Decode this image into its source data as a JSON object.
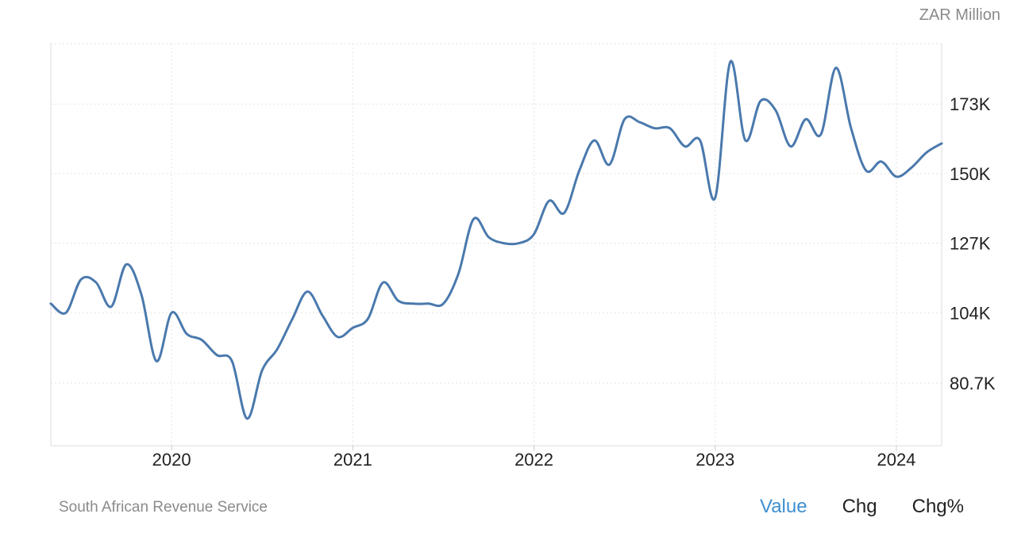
{
  "unit_label": "ZAR Million",
  "source": "South African Revenue Service",
  "tabs": [
    {
      "label": "Value",
      "active": true
    },
    {
      "label": "Chg",
      "active": false
    },
    {
      "label": "Chg%",
      "active": false
    }
  ],
  "colors": {
    "line": "#4a79ad",
    "grid": "#e3e3e3",
    "active_tab": "#3f8fd1"
  },
  "chart_data": {
    "type": "line",
    "title": "",
    "xlabel": "",
    "ylabel": "ZAR Million",
    "x_ticks": [
      "2020",
      "2021",
      "2022",
      "2023",
      "2024"
    ],
    "y_ticks": [
      {
        "label": "80.7K",
        "value": 80700
      },
      {
        "label": "104K",
        "value": 104000
      },
      {
        "label": "127K",
        "value": 127000
      },
      {
        "label": "150K",
        "value": 150000
      },
      {
        "label": "173K",
        "value": 173000
      }
    ],
    "ylim": [
      60000,
      193000
    ],
    "xlim": [
      "2019-05",
      "2024-04"
    ],
    "grid": true,
    "series": [
      {
        "values": [
          [
            "2019-05",
            107000
          ],
          [
            "2019-06",
            104000
          ],
          [
            "2019-07",
            115000
          ],
          [
            "2019-08",
            114000
          ],
          [
            "2019-09",
            106000
          ],
          [
            "2019-10",
            120000
          ],
          [
            "2019-11",
            110000
          ],
          [
            "2019-12",
            88000
          ],
          [
            "2020-01",
            104000
          ],
          [
            "2020-02",
            97000
          ],
          [
            "2020-03",
            95000
          ],
          [
            "2020-04",
            90000
          ],
          [
            "2020-05",
            88000
          ],
          [
            "2020-06",
            69000
          ],
          [
            "2020-07",
            85000
          ],
          [
            "2020-08",
            92000
          ],
          [
            "2020-09",
            102000
          ],
          [
            "2020-10",
            111000
          ],
          [
            "2020-11",
            103000
          ],
          [
            "2020-12",
            96000
          ],
          [
            "2021-01",
            99000
          ],
          [
            "2021-02",
            102000
          ],
          [
            "2021-03",
            114000
          ],
          [
            "2021-04",
            108000
          ],
          [
            "2021-05",
            107000
          ],
          [
            "2021-06",
            107000
          ],
          [
            "2021-07",
            107000
          ],
          [
            "2021-08",
            117000
          ],
          [
            "2021-09",
            135000
          ],
          [
            "2021-10",
            129000
          ],
          [
            "2021-11",
            127000
          ],
          [
            "2021-12",
            127000
          ],
          [
            "2022-01",
            130000
          ],
          [
            "2022-02",
            141000
          ],
          [
            "2022-03",
            137000
          ],
          [
            "2022-04",
            151000
          ],
          [
            "2022-05",
            161000
          ],
          [
            "2022-06",
            153000
          ],
          [
            "2022-07",
            168000
          ],
          [
            "2022-08",
            167000
          ],
          [
            "2022-09",
            165000
          ],
          [
            "2022-10",
            165000
          ],
          [
            "2022-11",
            159000
          ],
          [
            "2022-12",
            161000
          ],
          [
            "2023-01",
            142000
          ],
          [
            "2023-02",
            187000
          ],
          [
            "2023-03",
            161000
          ],
          [
            "2023-04",
            174000
          ],
          [
            "2023-05",
            171000
          ],
          [
            "2023-06",
            159000
          ],
          [
            "2023-07",
            168000
          ],
          [
            "2023-08",
            163000
          ],
          [
            "2023-09",
            185000
          ],
          [
            "2023-10",
            165000
          ],
          [
            "2023-11",
            151000
          ],
          [
            "2023-12",
            154000
          ],
          [
            "2024-01",
            149000
          ],
          [
            "2024-02",
            152000
          ],
          [
            "2024-03",
            157000
          ],
          [
            "2024-04",
            160000
          ]
        ]
      }
    ]
  }
}
